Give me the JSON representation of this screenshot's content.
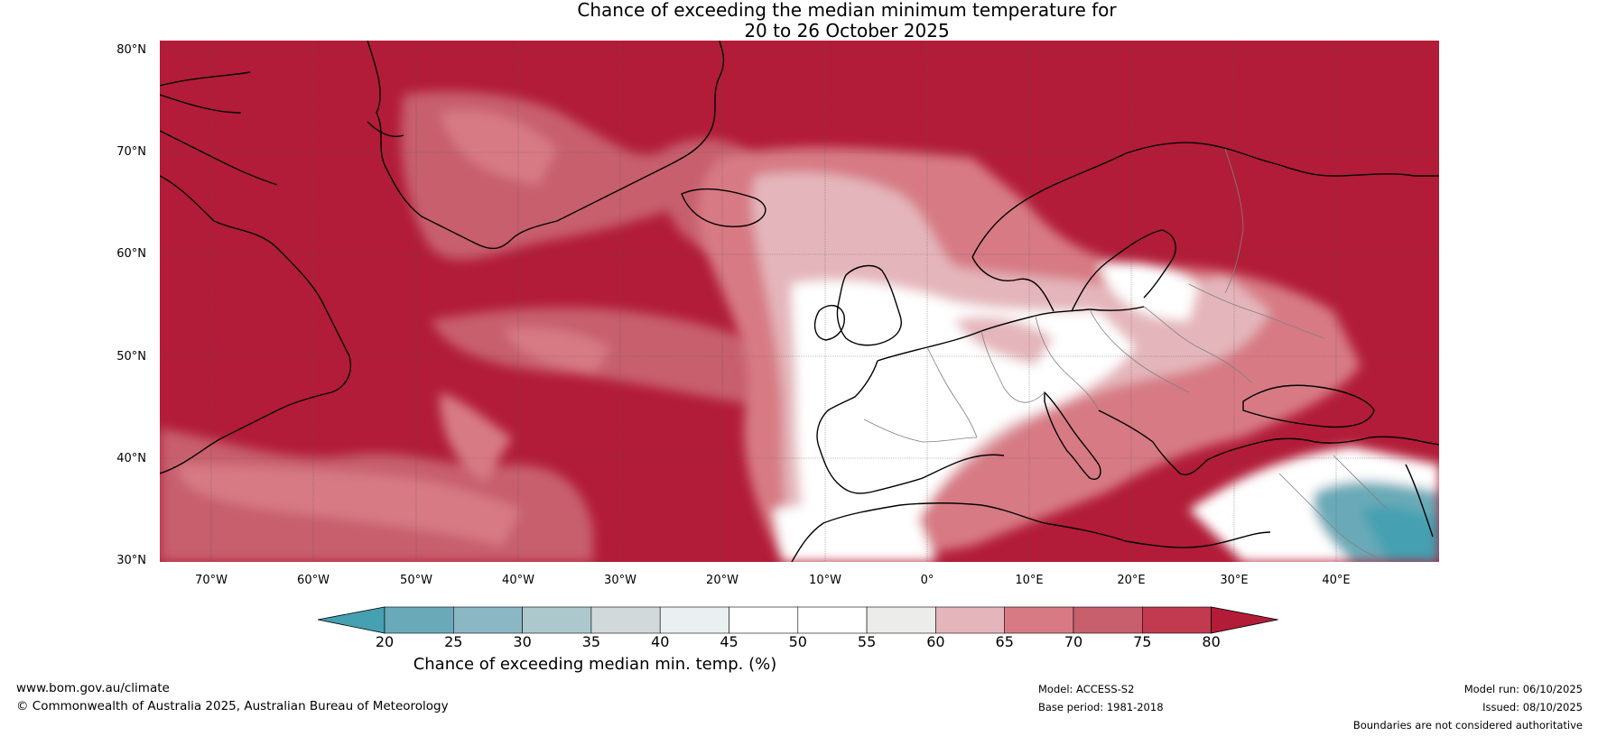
{
  "title": {
    "line1": "Chance of exceeding the median minimum temperature for",
    "line2": "20 to 26 October 2025"
  },
  "map": {
    "latitude_labels": [
      "80°N",
      "70°N",
      "60°N",
      "50°N",
      "40°N",
      "30°N"
    ],
    "longitude_labels": [
      "70°W",
      "60°W",
      "50°W",
      "40°W",
      "30°W",
      "20°W",
      "10°W",
      "0°",
      "10°E",
      "20°E",
      "30°E",
      "40°E"
    ],
    "colors": {
      "background_high": "#b21c38",
      "coastline": "#000000",
      "borders": "#808080"
    }
  },
  "colorbar": {
    "label": "Chance of exceeding median min. temp. (%)",
    "ticks": [
      "20",
      "25",
      "30",
      "35",
      "40",
      "45",
      "50",
      "55",
      "60",
      "65",
      "70",
      "75",
      "80"
    ],
    "colors": [
      "#45a0b1",
      "#6aaab8",
      "#8ab7c3",
      "#acc8cd",
      "#d1d9da",
      "#eaf0f2",
      "#ffffff",
      "#ffffff",
      "#ececea",
      "#e4b6bb",
      "#d77a84",
      "#c75f6d",
      "#c13a50",
      "#b21c38"
    ]
  },
  "footer": {
    "website": "www.bom.gov.au/climate",
    "copyright": "© Commonwealth of Australia 2025, Australian Bureau of Meteorology",
    "model": "Model: ACCESS-S2",
    "base_period": "Base period: 1981-2018",
    "model_run": "Model run: 06/10/2025",
    "issued": "Issued: 08/10/2025",
    "disclaimer": "Boundaries are not considered authoritative"
  }
}
